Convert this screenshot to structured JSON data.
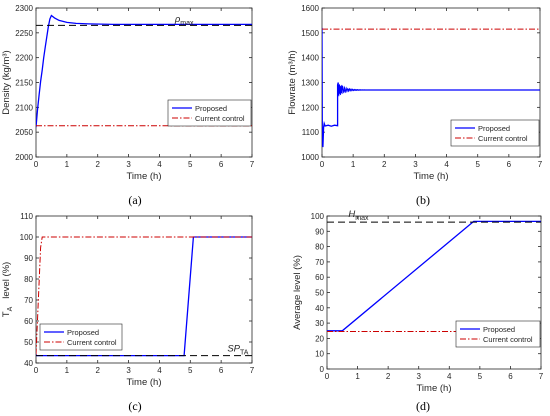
{
  "chart_data": [
    {
      "panel": "(a)",
      "type": "line",
      "xlabel": "Time (h)",
      "ylabel": "Density (kg/m³)",
      "xlim": [
        0,
        7
      ],
      "ylim": [
        2000,
        2300
      ],
      "xticks": [
        "0",
        "1",
        "2",
        "3",
        "4",
        "5",
        "6",
        "7"
      ],
      "yticks": [
        "2000",
        "2050",
        "2100",
        "2150",
        "2200",
        "2250",
        "2300"
      ],
      "annotations": [
        {
          "text": "ρ",
          "sub": "max",
          "x": 4.5,
          "y": 2272
        }
      ],
      "legend": {
        "placement": "right",
        "entries": [
          "Proposed",
          "Current control"
        ]
      },
      "series": [
        {
          "name": "Proposed",
          "color": "#0000ff",
          "dash": "solid",
          "x": [
            0,
            0.05,
            0.1,
            0.15,
            0.2,
            0.25,
            0.3,
            0.35,
            0.4,
            0.45,
            0.5,
            0.6,
            0.75,
            1.0,
            1.3,
            1.7,
            2.5,
            4.0,
            7.0
          ],
          "y": [
            2060,
            2095,
            2125,
            2152,
            2175,
            2200,
            2222,
            2242,
            2262,
            2278,
            2285,
            2280,
            2275,
            2271,
            2269,
            2268,
            2267,
            2267,
            2267
          ]
        },
        {
          "name": "Current control",
          "color": "#cc0000",
          "dash": "dashdot",
          "x": [
            0,
            7
          ],
          "y": [
            2063,
            2063
          ]
        },
        {
          "name": "",
          "color": "#000000",
          "dash": "dashed",
          "x": [
            0,
            7
          ],
          "y": [
            2265,
            2265
          ]
        }
      ]
    },
    {
      "panel": "(b)",
      "type": "line",
      "xlabel": "Time (h)",
      "ylabel": "Flowrate (m³/h)",
      "xlim": [
        0,
        7
      ],
      "ylim": [
        1000,
        1600
      ],
      "xticks": [
        "0",
        "1",
        "2",
        "3",
        "4",
        "5",
        "6",
        "7"
      ],
      "yticks": [
        "1000",
        "1100",
        "1200",
        "1300",
        "1400",
        "1500",
        "1600"
      ],
      "legend": {
        "placement": "right",
        "entries": [
          "Proposed",
          "Current control"
        ]
      },
      "series": [
        {
          "name": "Proposed",
          "color": "#0000ff",
          "dash": "solid",
          "x": [
            0,
            0.01,
            0.02,
            0.03,
            0.05,
            0.07,
            0.1,
            0.2,
            0.3,
            0.4,
            0.5,
            0.5,
            0.52,
            0.53,
            0.55,
            0.57,
            0.6,
            0.62,
            0.65,
            0.7,
            0.8,
            1.0,
            2.0,
            7.0
          ],
          "y": [
            1520,
            1100,
            1050,
            1040,
            1120,
            1135,
            1125,
            1128,
            1124,
            1128,
            1126,
            1290,
            1300,
            1250,
            1290,
            1255,
            1285,
            1258,
            1282,
            1265,
            1272,
            1270,
            1270,
            1270
          ]
        },
        {
          "name": "Current control",
          "color": "#cc0000",
          "dash": "dashdot",
          "x": [
            0,
            7
          ],
          "y": [
            1515,
            1515
          ]
        }
      ]
    },
    {
      "panel": "(c)",
      "type": "line",
      "xlabel": "Time (h)",
      "ylabel": "T_A level (%)",
      "ylabel_main": "T",
      "ylabel_sub": "A",
      "ylabel_rest": "level (%)",
      "xlim": [
        0,
        7
      ],
      "ylim": [
        40,
        110
      ],
      "xticks": [
        "0",
        "1",
        "2",
        "3",
        "4",
        "5",
        "6",
        "7"
      ],
      "yticks": [
        "40",
        "50",
        "60",
        "70",
        "80",
        "90",
        "100",
        "110"
      ],
      "annotations": [
        {
          "text": "SP",
          "sub": "TA",
          "x": 6.2,
          "y": 45.5
        }
      ],
      "legend": {
        "placement": "bottom-left",
        "entries": [
          "Proposed",
          "Current control"
        ]
      },
      "series": [
        {
          "name": "Proposed",
          "color": "#0000ff",
          "dash": "solid",
          "x": [
            0,
            0.02,
            4.8,
            5.1,
            5.15,
            7.0
          ],
          "y": [
            44,
            43.5,
            43.5,
            100,
            100,
            100
          ]
        },
        {
          "name": "Current control",
          "color": "#cc0000",
          "dash": "dashdot",
          "x": [
            0,
            0.15,
            0.2,
            7.0
          ],
          "y": [
            44,
            95,
            100,
            100
          ]
        },
        {
          "name": "",
          "color": "#000000",
          "dash": "dashed",
          "x": [
            0,
            7
          ],
          "y": [
            43.5,
            43.5
          ]
        }
      ]
    },
    {
      "panel": "(d)",
      "type": "line",
      "xlabel": "Time (h)",
      "ylabel": "Average level (%)",
      "xlim": [
        0,
        7
      ],
      "ylim": [
        0,
        100
      ],
      "xticks": [
        "0",
        "1",
        "2",
        "3",
        "4",
        "5",
        "6",
        "7"
      ],
      "yticks": [
        "0",
        "10",
        "20",
        "30",
        "40",
        "50",
        "60",
        "70",
        "80",
        "90",
        "100"
      ],
      "annotations": [
        {
          "text": "H",
          "sub": "max",
          "x": 0.7,
          "y": 99.5
        }
      ],
      "legend": {
        "placement": "bottom-right",
        "entries": [
          "Proposed",
          "Current control"
        ]
      },
      "series": [
        {
          "name": "Proposed",
          "color": "#0000ff",
          "dash": "solid",
          "x": [
            0,
            0.5,
            4.8,
            5.0,
            7.0
          ],
          "y": [
            25,
            25,
            96.5,
            96.5,
            96.5
          ]
        },
        {
          "name": "Current control",
          "color": "#cc0000",
          "dash": "dashdot",
          "x": [
            0,
            7
          ],
          "y": [
            24.5,
            24.5
          ]
        },
        {
          "name": "",
          "color": "#000000",
          "dash": "dashed",
          "x": [
            0,
            7
          ],
          "y": [
            96,
            96
          ]
        }
      ]
    }
  ],
  "captions": [
    "(a)",
    "(b)",
    "(c)",
    "(d)"
  ]
}
